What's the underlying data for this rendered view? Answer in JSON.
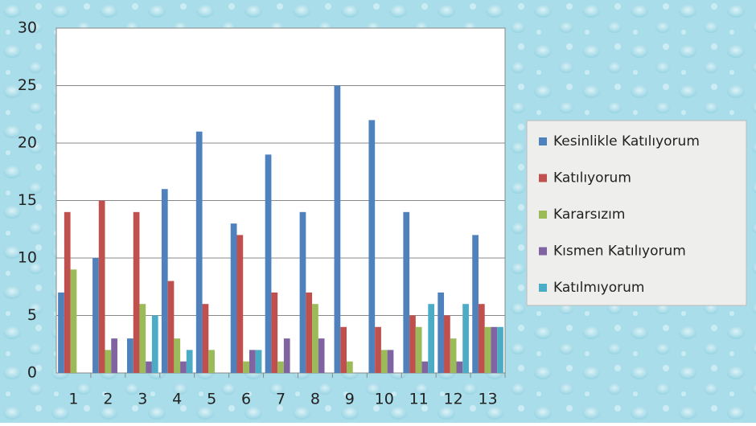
{
  "chart_data": {
    "type": "bar",
    "categories": [
      "1",
      "2",
      "3",
      "4",
      "5",
      "6",
      "7",
      "8",
      "9",
      "10",
      "11",
      "12",
      "13"
    ],
    "series": [
      {
        "name": "Kesinlikle  Katılıyorum",
        "color": "#4f81bd",
        "values": [
          7,
          10,
          3,
          16,
          21,
          13,
          19,
          14,
          25,
          22,
          14,
          7,
          12
        ]
      },
      {
        "name": "Katılıyorum",
        "color": "#c0504d",
        "values": [
          14,
          15,
          14,
          8,
          6,
          12,
          7,
          7,
          4,
          4,
          5,
          5,
          6
        ]
      },
      {
        "name": "Kararsızım",
        "color": "#9bbb59",
        "values": [
          9,
          2,
          6,
          3,
          2,
          1,
          1,
          6,
          1,
          2,
          4,
          3,
          4
        ]
      },
      {
        "name": "Kısmen Katılıyorum",
        "color": "#8064a2",
        "values": [
          0,
          3,
          1,
          1,
          0,
          2,
          3,
          3,
          0,
          2,
          1,
          1,
          4
        ]
      },
      {
        "name": "Katılmıyorum",
        "color": "#4bacc6",
        "values": [
          0,
          0,
          5,
          2,
          0,
          2,
          0,
          0,
          0,
          0,
          6,
          6,
          4
        ]
      }
    ],
    "ylim": [
      0,
      30
    ],
    "yticks": [
      0,
      5,
      10,
      15,
      20,
      25,
      30
    ],
    "grid": true,
    "legend": "right"
  }
}
